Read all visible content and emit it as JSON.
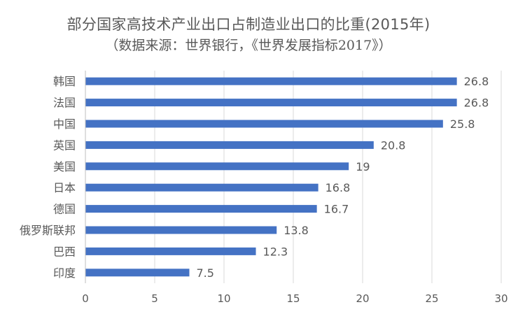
{
  "chart_data": {
    "type": "bar",
    "orientation": "horizontal",
    "title": "部分国家高技术产业出口占制造业出口的比重(2015年)",
    "subtitle": "（数据来源：世界银行，《世界发展指标2017》）",
    "categories": [
      "韩国",
      "法国",
      "中国",
      "英国",
      "美国",
      "日本",
      "德国",
      "俄罗斯联邦",
      "巴西",
      "印度"
    ],
    "values": [
      26.8,
      26.8,
      25.8,
      20.8,
      19,
      16.8,
      16.7,
      13.8,
      12.3,
      7.5
    ],
    "value_labels": [
      "26.8",
      "26.8",
      "25.8",
      "20.8",
      "19",
      "16.8",
      "16.7",
      "13.8",
      "12.3",
      "7.5"
    ],
    "xlim": [
      0,
      30
    ],
    "xticks": [
      0,
      5,
      10,
      15,
      20,
      25,
      30
    ],
    "grid": "vertical",
    "legend": "none",
    "bar_color": "#4472C4",
    "grid_color": "#d9d9d9",
    "text_color": "#595959"
  }
}
